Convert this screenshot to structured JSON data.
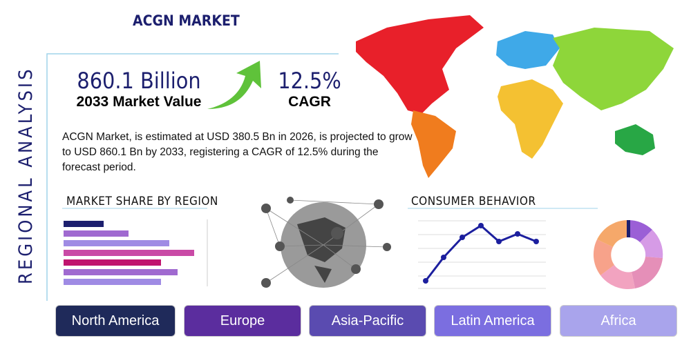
{
  "title": "ACGN MARKET",
  "side_heading": "REGIONAL ANALYSIS",
  "market_value": {
    "value": "860.1 Billion",
    "label": "2033 Market Value"
  },
  "cagr": {
    "value": "12.5%",
    "label": "CAGR"
  },
  "description": "ACGN Market, is estimated at USD 380.5 Bn in 2026, is projected to grow to USD 860.1 Bn by 2033, registering a CAGR of 12.5% during the forecast period.",
  "sections": [
    "MARKET SHARE BY REGION",
    "CONSUMER BEHAVIOR"
  ],
  "regions": [
    "North America",
    "Europe",
    "Asia-Pacific",
    "Latin America",
    "Africa"
  ]
}
